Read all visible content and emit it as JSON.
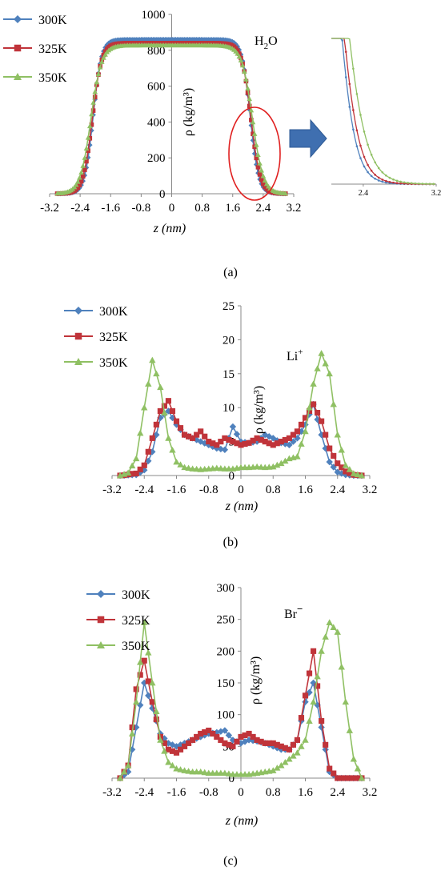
{
  "colors": {
    "300K": "#4f81bd",
    "325K": "#c0343a",
    "350K": "#8fc063",
    "highlight": "#e02020",
    "arrow": "#3f6fb0"
  },
  "chart_data": [
    {
      "type": "line",
      "panel": "(a)",
      "species_parts": [
        "H",
        "2",
        "O"
      ],
      "xlabel": "z (nm)",
      "ylabel": "ρ (kg/m³)",
      "xlim": [
        -3.2,
        3.2
      ],
      "ylim": [
        0,
        1000
      ],
      "xticks": [
        "-3.2",
        "-2.4",
        "-1.6",
        "-0.8",
        "0",
        "0.8",
        "1.6",
        "2.4",
        "3.2"
      ],
      "yticks": [
        "0",
        "200",
        "400",
        "600",
        "800",
        "1000"
      ],
      "legend": [
        "300K",
        "325K",
        "350K"
      ],
      "legend_position": "top-left",
      "series": [
        {
          "name": "300K",
          "marker": "diamond",
          "plateau": 860,
          "edge": 2.06,
          "width": 0.11
        },
        {
          "name": "325K",
          "marker": "square",
          "plateau": 840,
          "edge": 2.08,
          "width": 0.12
        },
        {
          "name": "350K",
          "marker": "triangle",
          "plateau": 828,
          "edge": 2.12,
          "width": 0.14
        }
      ],
      "inset": {
        "xticks": [
          "2.4",
          "3.2"
        ]
      }
    },
    {
      "type": "line",
      "panel": "(b)",
      "species_parts": [
        "Li",
        "+",
        ""
      ],
      "xlabel": "z (nm)",
      "ylabel": "ρ (kg/m³)",
      "xlim": [
        -3.2,
        3.2
      ],
      "ylim": [
        0,
        25
      ],
      "xticks": [
        "-3.2",
        "-2.4",
        "-1.6",
        "-0.8",
        "0",
        "0.8",
        "1.6",
        "2.4",
        "3.2"
      ],
      "yticks": [
        "0",
        "5",
        "10",
        "15",
        "20",
        "25"
      ],
      "legend": [
        "300K",
        "325K",
        "350K"
      ],
      "legend_position": "top-left",
      "series": [
        {
          "name": "300K",
          "marker": "diamond",
          "x": [
            -3.0,
            -2.6,
            -2.4,
            -2.2,
            -2.0,
            -1.8,
            -1.6,
            -1.4,
            -1.2,
            -1.0,
            -0.8,
            -0.6,
            -0.4,
            -0.2,
            0.0,
            0.2,
            0.4,
            0.6,
            0.8,
            1.0,
            1.2,
            1.4,
            1.6,
            1.8,
            2.0,
            2.2,
            2.4,
            2.6,
            2.8,
            3.0
          ],
          "y": [
            0,
            0.1,
            0.8,
            3.5,
            8.5,
            9.5,
            7.5,
            6.0,
            5.5,
            5.0,
            4.5,
            4.0,
            3.8,
            7.2,
            5.0,
            4.8,
            5.0,
            6.0,
            5.5,
            4.8,
            4.5,
            5.5,
            7.5,
            10.5,
            6.0,
            2.0,
            0.5,
            0.1,
            0,
            0
          ]
        },
        {
          "name": "325K",
          "marker": "square",
          "x": [
            -3.0,
            -2.6,
            -2.4,
            -2.2,
            -2.0,
            -1.8,
            -1.6,
            -1.4,
            -1.2,
            -1.0,
            -0.8,
            -0.6,
            -0.4,
            -0.2,
            0.0,
            0.2,
            0.4,
            0.6,
            0.8,
            1.0,
            1.2,
            1.4,
            1.6,
            1.8,
            2.0,
            2.2,
            2.4,
            2.6,
            2.8,
            3.0
          ],
          "y": [
            0,
            0.3,
            1.5,
            5.5,
            9.5,
            11.0,
            8.0,
            6.0,
            5.5,
            6.5,
            5.0,
            4.5,
            5.5,
            5.0,
            4.5,
            4.8,
            5.5,
            5.0,
            4.5,
            5.0,
            5.5,
            6.5,
            8.5,
            10.5,
            8.0,
            4.0,
            1.8,
            0.6,
            0.1,
            0
          ]
        },
        {
          "name": "350K",
          "marker": "triangle",
          "x": [
            -3.0,
            -2.8,
            -2.6,
            -2.4,
            -2.2,
            -2.0,
            -1.8,
            -1.6,
            -1.4,
            -1.2,
            -1.0,
            -0.8,
            -0.6,
            -0.4,
            -0.2,
            0.0,
            0.2,
            0.4,
            0.6,
            0.8,
            1.0,
            1.2,
            1.4,
            1.6,
            1.8,
            2.0,
            2.2,
            2.4,
            2.6,
            2.8,
            3.0
          ],
          "y": [
            0,
            0.4,
            2.5,
            10.0,
            17.0,
            13.0,
            5.5,
            2.0,
            1.2,
            1.0,
            0.9,
            1.0,
            1.1,
            1.0,
            1.0,
            1.2,
            1.2,
            1.3,
            1.2,
            1.3,
            1.8,
            2.5,
            2.8,
            6.5,
            13.5,
            18.0,
            15.0,
            6.0,
            1.5,
            0.3,
            0
          ]
        }
      ]
    },
    {
      "type": "line",
      "panel": "(c)",
      "species_parts": [
        "Br",
        "−",
        ""
      ],
      "xlabel": "z (nm)",
      "ylabel": "ρ (kg/m³)",
      "xlim": [
        -3.2,
        3.2
      ],
      "ylim": [
        0,
        300
      ],
      "xticks": [
        "-3.2",
        "-2.4",
        "-1.6",
        "-0.8",
        "0",
        "0.8",
        "1.6",
        "2.4",
        "3.2"
      ],
      "yticks": [
        "0",
        "50",
        "100",
        "150",
        "200",
        "250",
        "300"
      ],
      "legend": [
        "300K",
        "325K",
        "350K"
      ],
      "legend_position": "top-left",
      "series": [
        {
          "name": "300K",
          "marker": "diamond",
          "x": [
            -3.0,
            -2.8,
            -2.6,
            -2.4,
            -2.2,
            -2.0,
            -1.8,
            -1.6,
            -1.4,
            -1.2,
            -1.0,
            -0.8,
            -0.6,
            -0.4,
            -0.2,
            0.0,
            0.2,
            0.4,
            0.6,
            0.8,
            1.0,
            1.2,
            1.4,
            1.6,
            1.8,
            2.0,
            2.2,
            2.4
          ],
          "y": [
            0,
            10,
            80,
            150,
            110,
            70,
            55,
            50,
            55,
            60,
            65,
            70,
            72,
            75,
            60,
            55,
            60,
            58,
            55,
            50,
            45,
            45,
            60,
            120,
            150,
            80,
            10,
            0
          ]
        },
        {
          "name": "325K",
          "marker": "square",
          "x": [
            -3.0,
            -2.8,
            -2.6,
            -2.4,
            -2.2,
            -2.0,
            -1.8,
            -1.6,
            -1.4,
            -1.2,
            -1.0,
            -0.8,
            -0.6,
            -0.4,
            -0.2,
            0.0,
            0.2,
            0.4,
            0.6,
            0.8,
            1.0,
            1.2,
            1.4,
            1.6,
            1.8,
            2.0,
            2.2,
            2.4
          ],
          "y": [
            0,
            20,
            140,
            185,
            120,
            65,
            45,
            40,
            50,
            60,
            70,
            75,
            65,
            55,
            50,
            65,
            70,
            60,
            55,
            55,
            50,
            45,
            60,
            130,
            200,
            90,
            15,
            0
          ]
        },
        {
          "name": "350K",
          "marker": "triangle",
          "x": [
            -3.0,
            -2.8,
            -2.6,
            -2.4,
            -2.2,
            -2.0,
            -1.8,
            -1.6,
            -1.4,
            -1.2,
            -1.0,
            -0.8,
            -0.6,
            -0.4,
            -0.2,
            0.0,
            0.2,
            0.4,
            0.6,
            0.8,
            1.0,
            1.2,
            1.4,
            1.6,
            1.8,
            2.0,
            2.2,
            2.4,
            2.6,
            2.8,
            3.0
          ],
          "y": [
            0,
            20,
            120,
            245,
            150,
            60,
            25,
            15,
            12,
            10,
            10,
            8,
            8,
            8,
            6,
            6,
            6,
            8,
            10,
            12,
            20,
            30,
            40,
            60,
            120,
            200,
            245,
            230,
            120,
            30,
            0
          ]
        }
      ]
    }
  ]
}
